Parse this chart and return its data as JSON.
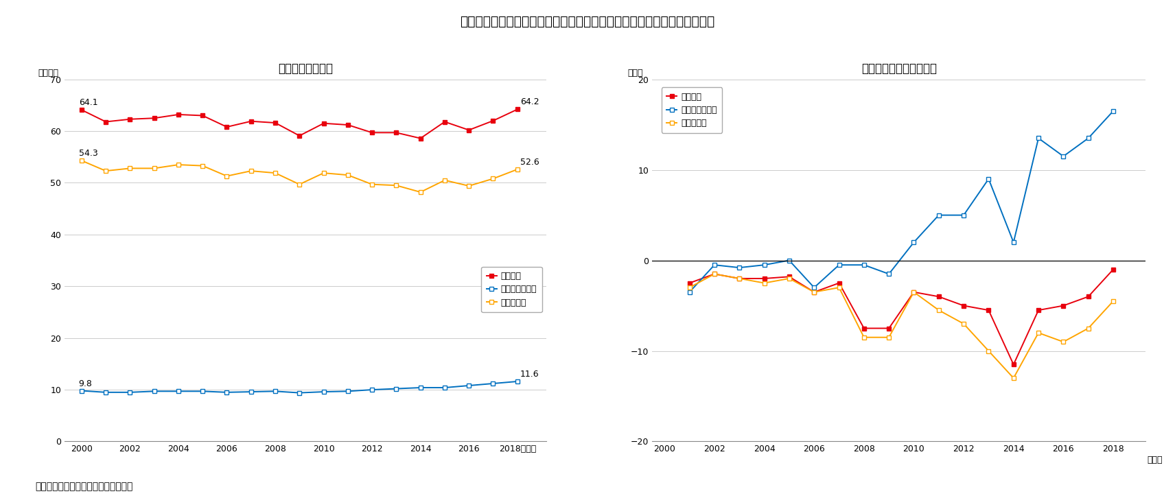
{
  "title": "図表４　共働き子育て世帯の世帯収入・可処分所得・税社会保険料の推移",
  "subtitle_a": "（ａ）実額の推移",
  "subtitle_b": "（ｂ）実質増減率の推移",
  "source": "（資料）総務省「家計調査」より作成",
  "years": [
    2000,
    2001,
    2002,
    2003,
    2004,
    2005,
    2006,
    2007,
    2008,
    2009,
    2010,
    2011,
    2012,
    2013,
    2014,
    2015,
    2016,
    2017,
    2018
  ],
  "a_income": [
    64.1,
    61.8,
    62.3,
    62.5,
    63.2,
    63.0,
    60.8,
    61.9,
    61.6,
    59.1,
    61.5,
    61.2,
    59.7,
    59.7,
    58.6,
    61.8,
    60.2,
    62.0,
    64.2
  ],
  "a_tax": [
    9.8,
    9.5,
    9.5,
    9.7,
    9.7,
    9.7,
    9.5,
    9.6,
    9.7,
    9.4,
    9.6,
    9.7,
    10.0,
    10.2,
    10.4,
    10.4,
    10.8,
    11.2,
    11.6
  ],
  "a_disposable": [
    54.3,
    52.3,
    52.8,
    52.8,
    53.5,
    53.3,
    51.3,
    52.3,
    51.9,
    49.7,
    51.9,
    51.5,
    49.7,
    49.5,
    48.2,
    50.5,
    49.4,
    50.8,
    52.6
  ],
  "b_years": [
    2001,
    2002,
    2003,
    2004,
    2005,
    2006,
    2007,
    2008,
    2009,
    2010,
    2011,
    2012,
    2013,
    2014,
    2015,
    2016,
    2017,
    2018
  ],
  "b_income": [
    -2.5,
    -1.5,
    -2.0,
    -2.0,
    -1.8,
    -3.5,
    -2.5,
    -7.5,
    -7.5,
    -3.5,
    -4.0,
    -5.0,
    -5.5,
    -11.5,
    -5.5,
    -5.0,
    -4.0,
    -1.0
  ],
  "b_tax": [
    -3.5,
    -0.5,
    -0.8,
    -0.5,
    0.0,
    -3.0,
    -0.5,
    -0.5,
    -1.5,
    2.0,
    5.0,
    5.0,
    9.0,
    2.0,
    13.5,
    11.5,
    13.5,
    16.5
  ],
  "b_disposable": [
    -3.0,
    -1.5,
    -2.0,
    -2.5,
    -2.0,
    -3.5,
    -3.0,
    -8.5,
    -8.5,
    -3.5,
    -5.5,
    -7.0,
    -10.0,
    -13.0,
    -8.0,
    -9.0,
    -7.5,
    -4.5
  ],
  "color_income": "#e8000d",
  "color_tax": "#0070c0",
  "color_disposable": "#ffa500",
  "a_ylim": [
    0,
    70
  ],
  "a_yticks": [
    0,
    10,
    20,
    30,
    40,
    50,
    60,
    70
  ],
  "b_ylim": [
    -20,
    20
  ],
  "b_yticks": [
    -20,
    -10,
    0,
    10,
    20
  ],
  "legend_income": "世帯収入",
  "legend_tax": "税・社会保険料",
  "legend_disposable": "可処分所得",
  "ylabel_a": "（万円）",
  "ylabel_b": "（％）",
  "note_a_year": "2018（年）",
  "note_b_year": "（年）"
}
